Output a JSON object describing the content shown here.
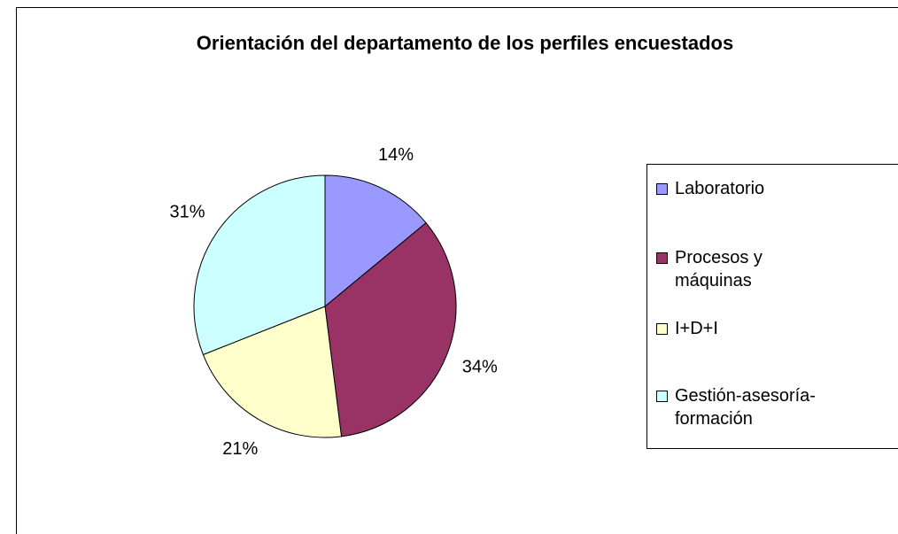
{
  "chart_data": {
    "type": "pie",
    "title": "Orientación del departamento de los perfiles encuestados",
    "categories": [
      "Laboratorio",
      "Procesos y máquinas",
      "I+D+I",
      "Gestión-asesoría-formación"
    ],
    "values": [
      14,
      34,
      21,
      31
    ],
    "value_labels": [
      "14%",
      "34%",
      "21%",
      "31%"
    ],
    "colors": [
      "#9999ff",
      "#993366",
      "#ffffcc",
      "#ccffff"
    ],
    "legend": "right"
  }
}
